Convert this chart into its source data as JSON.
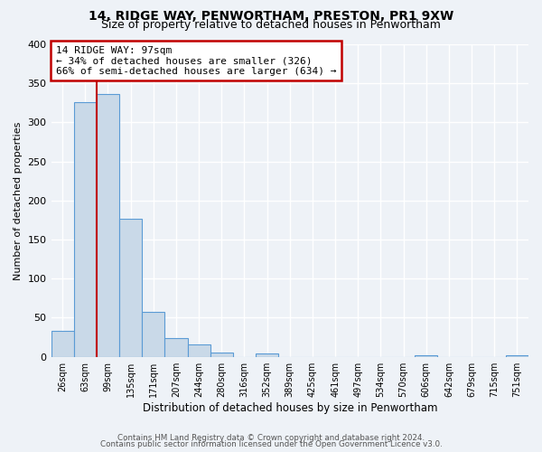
{
  "title": "14, RIDGE WAY, PENWORTHAM, PRESTON, PR1 9XW",
  "subtitle": "Size of property relative to detached houses in Penwortham",
  "xlabel": "Distribution of detached houses by size in Penwortham",
  "ylabel": "Number of detached properties",
  "bar_labels": [
    "26sqm",
    "63sqm",
    "99sqm",
    "135sqm",
    "171sqm",
    "207sqm",
    "244sqm",
    "280sqm",
    "316sqm",
    "352sqm",
    "389sqm",
    "425sqm",
    "461sqm",
    "497sqm",
    "534sqm",
    "570sqm",
    "606sqm",
    "642sqm",
    "679sqm",
    "715sqm",
    "751sqm"
  ],
  "bar_heights": [
    33,
    326,
    336,
    177,
    57,
    24,
    16,
    6,
    0,
    4,
    0,
    0,
    0,
    0,
    0,
    0,
    2,
    0,
    0,
    0,
    2
  ],
  "bar_color": "#c9d9e8",
  "bar_edge_color": "#5b9bd5",
  "vline_x": 1.5,
  "vline_color": "#c00000",
  "annotation_lines": [
    "14 RIDGE WAY: 97sqm",
    "← 34% of detached houses are smaller (326)",
    "66% of semi-detached houses are larger (634) →"
  ],
  "annotation_box_color": "#c00000",
  "ylim": [
    0,
    400
  ],
  "yticks": [
    0,
    50,
    100,
    150,
    200,
    250,
    300,
    350,
    400
  ],
  "footer1": "Contains HM Land Registry data © Crown copyright and database right 2024.",
  "footer2": "Contains public sector information licensed under the Open Government Licence v3.0.",
  "background_color": "#eef2f7",
  "grid_color": "#ffffff",
  "title_fontsize": 10,
  "subtitle_fontsize": 9
}
